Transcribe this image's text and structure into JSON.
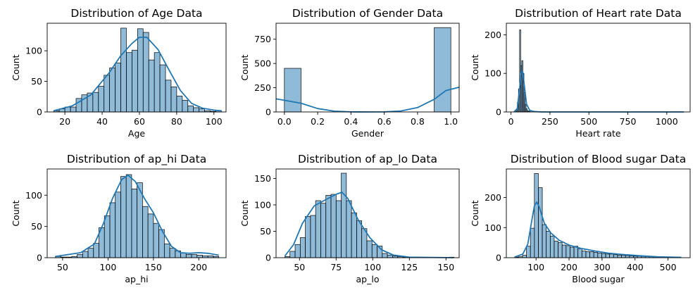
{
  "chart_data": [
    {
      "type": "bar",
      "title": "Distribution of Age Data",
      "xlabel": "Age",
      "ylabel": "Count",
      "xlim": [
        10.5,
        106.5
      ],
      "ylim": [
        0,
        145
      ],
      "xticks": [
        20,
        40,
        60,
        80,
        100
      ],
      "yticks": [
        0,
        50,
        100
      ],
      "bin_edges": [
        14,
        17,
        20,
        23,
        26,
        29,
        32,
        35,
        38,
        41,
        44,
        47,
        50,
        53,
        56,
        59,
        62,
        65,
        68,
        71,
        74,
        77,
        80,
        83,
        86,
        89,
        92,
        95,
        98,
        101,
        104
      ],
      "values": [
        2,
        5,
        8,
        8,
        22,
        28,
        31,
        32,
        42,
        60,
        72,
        80,
        137,
        97,
        101,
        136,
        130,
        85,
        97,
        77,
        52,
        41,
        26,
        19,
        10,
        7,
        5,
        2,
        1,
        2
      ],
      "kde": [
        [
          14,
          2
        ],
        [
          24,
          10
        ],
        [
          34,
          28
        ],
        [
          44,
          65
        ],
        [
          50,
          92
        ],
        [
          56,
          112
        ],
        [
          60,
          122
        ],
        [
          64,
          122
        ],
        [
          70,
          102
        ],
        [
          76,
          68
        ],
        [
          82,
          35
        ],
        [
          88,
          14
        ],
        [
          94,
          6
        ],
        [
          100,
          3
        ],
        [
          104,
          2
        ]
      ],
      "color": "#1f77b4"
    },
    {
      "type": "bar",
      "title": "Distribution of Gender Data",
      "xlabel": "Gender",
      "ylabel": "Count",
      "xlim": [
        -0.05,
        1.05
      ],
      "ylim": [
        0,
        915
      ],
      "xticks": [
        0.0,
        0.2,
        0.4,
        0.6,
        0.8,
        1.0
      ],
      "xtick_labels": [
        "0.0",
        "0.2",
        "0.4",
        "0.6",
        "0.8",
        "1.0"
      ],
      "yticks": [
        0,
        250,
        500,
        750
      ],
      "bin_edges": [
        0,
        0.1,
        0.2,
        0.3,
        0.4,
        0.5,
        0.6,
        0.7,
        0.8,
        0.9,
        1.0
      ],
      "values": [
        450,
        0,
        0,
        0,
        0,
        0,
        0,
        0,
        0,
        870
      ],
      "kde": [
        [
          -0.05,
          135
        ],
        [
          0.1,
          90
        ],
        [
          0.2,
          35
        ],
        [
          0.3,
          8
        ],
        [
          0.4,
          1
        ],
        [
          0.5,
          0
        ],
        [
          0.6,
          1
        ],
        [
          0.7,
          10
        ],
        [
          0.8,
          45
        ],
        [
          0.9,
          130
        ],
        [
          0.97,
          220
        ],
        [
          1.05,
          255
        ]
      ],
      "color": "#1f77b4"
    },
    {
      "type": "bar",
      "title": "Distribution of Heart rate Data",
      "xlabel": "Heart rate",
      "ylabel": "Count",
      "xlim": [
        -30,
        1150
      ],
      "ylim": [
        0,
        230
      ],
      "xticks": [
        0,
        250,
        500,
        750,
        1000
      ],
      "yticks": [
        0,
        100,
        200
      ],
      "bin_edges": [
        20,
        27,
        34,
        41,
        48,
        55,
        62,
        69,
        76,
        83,
        90,
        97,
        104,
        111,
        118,
        125
      ],
      "values": [
        2,
        5,
        8,
        25,
        60,
        213,
        120,
        133,
        100,
        50,
        20,
        8,
        3,
        2,
        1
      ],
      "kde": [
        [
          20,
          0
        ],
        [
          40,
          8
        ],
        [
          55,
          60
        ],
        [
          65,
          100
        ],
        [
          75,
          105
        ],
        [
          85,
          70
        ],
        [
          100,
          20
        ],
        [
          120,
          4
        ],
        [
          150,
          1
        ],
        [
          200,
          0
        ],
        [
          1110,
          0
        ]
      ],
      "color": "#1f77b4"
    },
    {
      "type": "bar",
      "title": "Distribution of ap_hi Data",
      "xlabel": "ap_hi",
      "ylabel": "Count",
      "xlim": [
        33,
        230
      ],
      "ylim": [
        0,
        142
      ],
      "xticks": [
        50,
        100,
        150,
        200
      ],
      "yticks": [
        0,
        50,
        100
      ],
      "bin_edges": [
        42,
        48,
        54,
        60,
        66,
        72,
        78,
        84,
        90,
        96,
        102,
        108,
        114,
        120,
        126,
        132,
        138,
        144,
        150,
        156,
        162,
        168,
        174,
        180,
        186,
        192,
        198,
        204,
        210,
        216,
        222
      ],
      "values": [
        2,
        1,
        1,
        2,
        5,
        10,
        15,
        23,
        48,
        67,
        88,
        105,
        130,
        133,
        110,
        120,
        82,
        70,
        55,
        45,
        22,
        15,
        11,
        8,
        5,
        5,
        4,
        3,
        3,
        2
      ],
      "kde": [
        [
          42,
          2
        ],
        [
          70,
          8
        ],
        [
          85,
          22
        ],
        [
          95,
          55
        ],
        [
          105,
          95
        ],
        [
          115,
          125
        ],
        [
          122,
          132
        ],
        [
          130,
          122
        ],
        [
          140,
          95
        ],
        [
          150,
          72
        ],
        [
          160,
          42
        ],
        [
          170,
          18
        ],
        [
          180,
          8
        ],
        [
          190,
          7
        ],
        [
          200,
          8
        ],
        [
          210,
          7
        ],
        [
          222,
          4
        ]
      ],
      "color": "#1f77b4"
    },
    {
      "type": "bar",
      "title": "Distribution of ap_lo Data",
      "xlabel": "ap_lo",
      "ylabel": "Count",
      "xlim": [
        34,
        159
      ],
      "ylim": [
        0,
        168
      ],
      "xticks": [
        50,
        75,
        100,
        125,
        150
      ],
      "yticks": [
        0,
        50,
        100,
        150
      ],
      "bin_edges": [
        40,
        43.5,
        47,
        50.5,
        54,
        57.5,
        61,
        64.5,
        68,
        71.5,
        75,
        78.5,
        82,
        85.5,
        89,
        92.5,
        96,
        99.5,
        103,
        106.5,
        110,
        113.5,
        117,
        120.5,
        124,
        127.5,
        131,
        134.5,
        138,
        141.5,
        145,
        148.5,
        152,
        155.5
      ],
      "values": [
        2,
        12,
        25,
        38,
        78,
        80,
        108,
        103,
        118,
        120,
        108,
        160,
        108,
        85,
        70,
        55,
        32,
        25,
        22,
        8,
        5,
        3,
        2,
        1,
        0,
        0,
        0,
        0,
        0,
        0,
        0,
        0,
        1
      ],
      "kde": [
        [
          40,
          3
        ],
        [
          46,
          25
        ],
        [
          52,
          65
        ],
        [
          60,
          98
        ],
        [
          68,
          110
        ],
        [
          75,
          120
        ],
        [
          79,
          124
        ],
        [
          83,
          112
        ],
        [
          90,
          72
        ],
        [
          98,
          38
        ],
        [
          106,
          15
        ],
        [
          114,
          5
        ],
        [
          125,
          1
        ],
        [
          155,
          0
        ]
      ],
      "color": "#1f77b4"
    },
    {
      "type": "bar",
      "title": "Distribution of Blood sugar Data",
      "xlabel": "Blood sugar",
      "ylabel": "Count",
      "xlim": [
        10,
        567
      ],
      "ylim": [
        0,
        295
      ],
      "xticks": [
        100,
        200,
        300,
        400,
        500
      ],
      "yticks": [
        0,
        100,
        200
      ],
      "bin_edges": [
        35,
        47,
        59,
        71,
        83,
        95,
        107,
        119,
        131,
        143,
        155,
        167,
        179,
        191,
        203,
        215,
        227,
        239,
        251,
        263,
        275,
        287,
        299,
        311,
        323,
        335,
        347,
        359,
        371,
        383,
        395,
        407,
        419,
        431,
        443,
        455,
        467,
        479,
        491,
        503,
        515,
        527,
        539
      ],
      "values": [
        2,
        3,
        8,
        38,
        98,
        280,
        233,
        110,
        88,
        72,
        55,
        50,
        42,
        40,
        35,
        38,
        30,
        22,
        20,
        20,
        18,
        15,
        14,
        12,
        12,
        10,
        8,
        8,
        7,
        6,
        5,
        5,
        4,
        4,
        3,
        3,
        2,
        2,
        2,
        1,
        1,
        1
      ],
      "kde": [
        [
          35,
          2
        ],
        [
          60,
          12
        ],
        [
          75,
          45
        ],
        [
          85,
          110
        ],
        [
          95,
          172
        ],
        [
          102,
          185
        ],
        [
          110,
          168
        ],
        [
          125,
          115
        ],
        [
          145,
          82
        ],
        [
          170,
          58
        ],
        [
          200,
          42
        ],
        [
          240,
          30
        ],
        [
          280,
          22
        ],
        [
          320,
          15
        ],
        [
          370,
          10
        ],
        [
          420,
          6
        ],
        [
          470,
          3
        ],
        [
          540,
          1
        ]
      ],
      "color": "#1f77b4"
    }
  ]
}
